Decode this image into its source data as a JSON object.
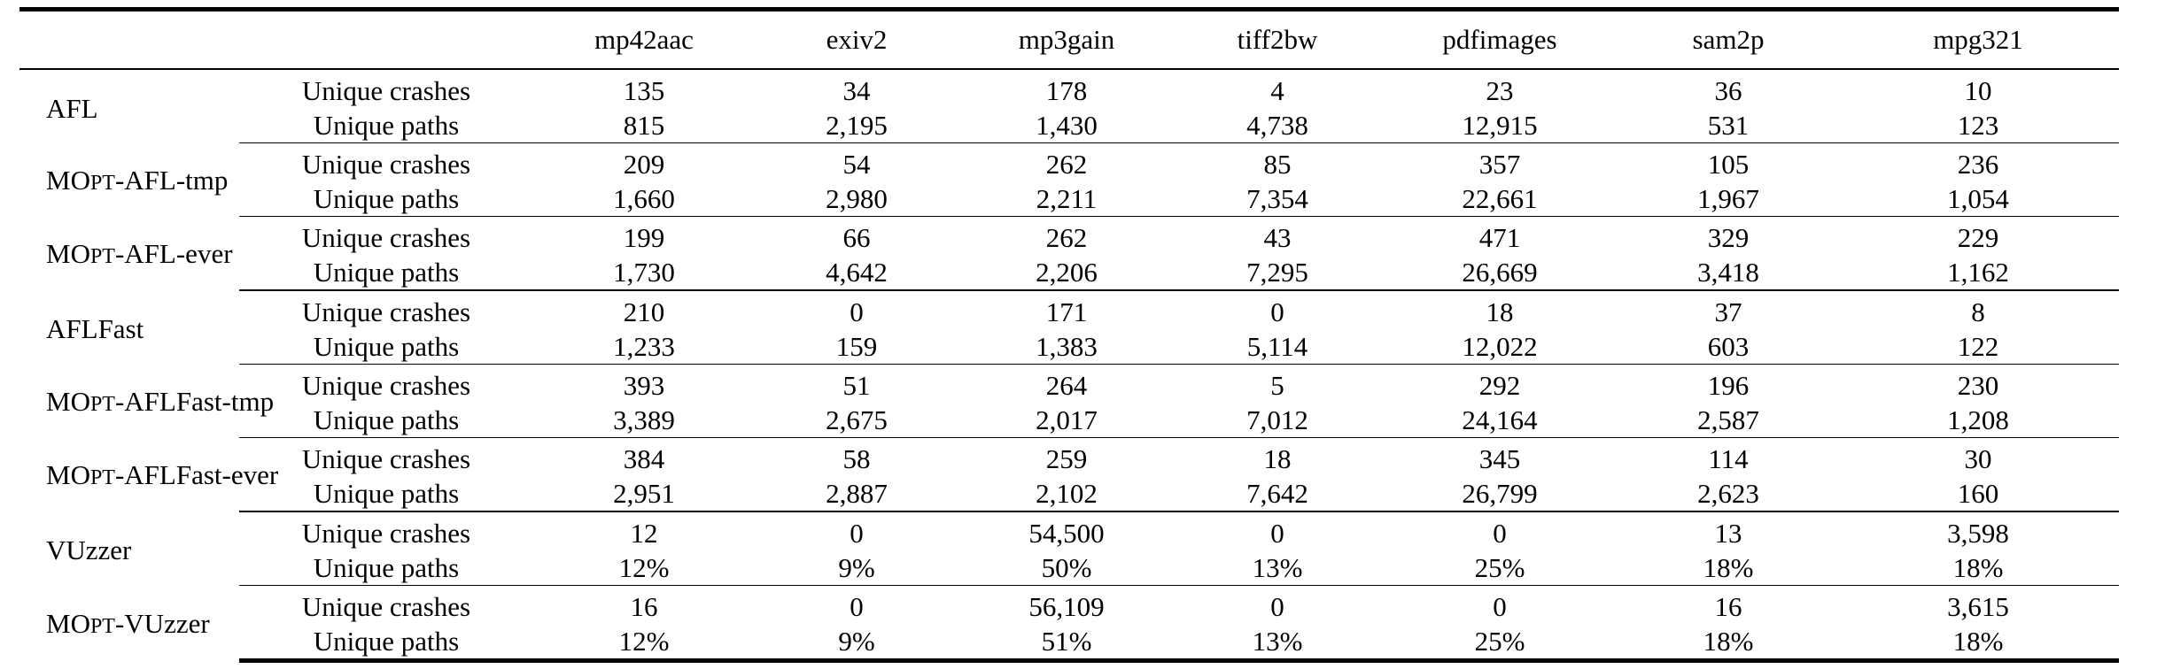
{
  "columns": [
    "",
    "",
    "mp42aac",
    "exiv2",
    "mp3gain",
    "tiff2bw",
    "pdfimages",
    "sam2p",
    "mpg321"
  ],
  "groups": [
    {
      "rows": [
        {
          "method": "AFL",
          "label": "Unique crashes",
          "values": [
            "135",
            "34",
            "178",
            "4",
            "23",
            "36",
            "10"
          ],
          "bold": [
            false,
            false,
            false,
            false,
            false,
            false,
            false
          ]
        },
        {
          "label": "Unique paths",
          "values": [
            "815",
            "2,195",
            "1,430",
            "4,738",
            "12,915",
            "531",
            "123"
          ],
          "bold": [
            false,
            false,
            false,
            false,
            false,
            false,
            false
          ]
        },
        {
          "method": "MOPT-AFL-tmp",
          "label": "Unique crashes",
          "values": [
            "209",
            "54",
            "262",
            "85",
            "357",
            "105",
            "236"
          ],
          "bold": [
            true,
            false,
            true,
            true,
            false,
            false,
            true
          ]
        },
        {
          "label": "Unique paths",
          "values": [
            "1,660",
            "2,980",
            "2,211",
            "7,354",
            "22,661",
            "1,967",
            "1,054"
          ],
          "bold": [
            false,
            false,
            true,
            true,
            false,
            false,
            false
          ]
        },
        {
          "method": "MOPT-AFL-ever",
          "label": "Unique crashes",
          "values": [
            "199",
            "66",
            "262",
            "43",
            "471",
            "329",
            "229"
          ],
          "bold": [
            false,
            true,
            true,
            false,
            true,
            true,
            false
          ]
        },
        {
          "label": "Unique paths",
          "values": [
            "1,730",
            "4,642",
            "2,206",
            "7,295",
            "26,669",
            "3,418",
            "1,162"
          ],
          "bold": [
            true,
            true,
            false,
            false,
            true,
            true,
            true
          ]
        }
      ]
    },
    {
      "rows": [
        {
          "method": "AFLFast",
          "label": "Unique crashes",
          "values": [
            "210",
            "0",
            "171",
            "0",
            "18",
            "37",
            "8"
          ],
          "bold": [
            false,
            false,
            false,
            false,
            false,
            false,
            false
          ]
        },
        {
          "label": "Unique paths",
          "values": [
            "1,233",
            "159",
            "1,383",
            "5,114",
            "12,022",
            "603",
            "122"
          ],
          "bold": [
            false,
            false,
            false,
            false,
            false,
            false,
            false
          ]
        },
        {
          "method": "MOPT-AFLFast-tmp",
          "label": "Unique crashes",
          "values": [
            "393",
            "51",
            "264",
            "5",
            "292",
            "196",
            "230"
          ],
          "bold": [
            true,
            false,
            true,
            false,
            false,
            true,
            true
          ]
        },
        {
          "label": "Unique paths",
          "values": [
            "3,389",
            "2,675",
            "2,017",
            "7,012",
            "24,164",
            "2,587",
            "1,208"
          ],
          "bold": [
            true,
            false,
            false,
            false,
            false,
            false,
            true
          ]
        },
        {
          "method": "MOPT-AFLFast-ever",
          "label": "Unique crashes",
          "values": [
            "384",
            "58",
            "259",
            "18",
            "345",
            "114",
            "30"
          ],
          "bold": [
            false,
            true,
            false,
            true,
            true,
            false,
            false
          ]
        },
        {
          "label": "Unique paths",
          "values": [
            "2,951",
            "2,887",
            "2,102",
            "7,642",
            "26,799",
            "2,623",
            "160"
          ],
          "bold": [
            false,
            true,
            true,
            true,
            true,
            true,
            false
          ]
        }
      ]
    },
    {
      "rows": [
        {
          "method": "VUzzer",
          "label": "Unique crashes",
          "values": [
            "12",
            "0",
            "54,500",
            "0",
            "0",
            "13",
            "3,598"
          ],
          "bold": [
            false,
            false,
            false,
            false,
            false,
            false,
            false
          ]
        },
        {
          "label": "Unique paths",
          "values": [
            "12%",
            "9%",
            "50%",
            "13%",
            "25%",
            "18%",
            "18%"
          ],
          "bold": [
            false,
            false,
            false,
            false,
            false,
            false,
            false
          ]
        },
        {
          "method": "MOPT-VUzzer",
          "label": "Unique crashes",
          "values": [
            "16",
            "0",
            "56,109",
            "0",
            "0",
            "16",
            "3,615"
          ],
          "bold": [
            true,
            false,
            true,
            false,
            false,
            true,
            true
          ]
        },
        {
          "label": "Unique paths",
          "values": [
            "12%",
            "9%",
            "51%",
            "13%",
            "25%",
            "18%",
            "18%"
          ],
          "bold": [
            false,
            false,
            true,
            false,
            false,
            false,
            false
          ]
        }
      ]
    }
  ]
}
